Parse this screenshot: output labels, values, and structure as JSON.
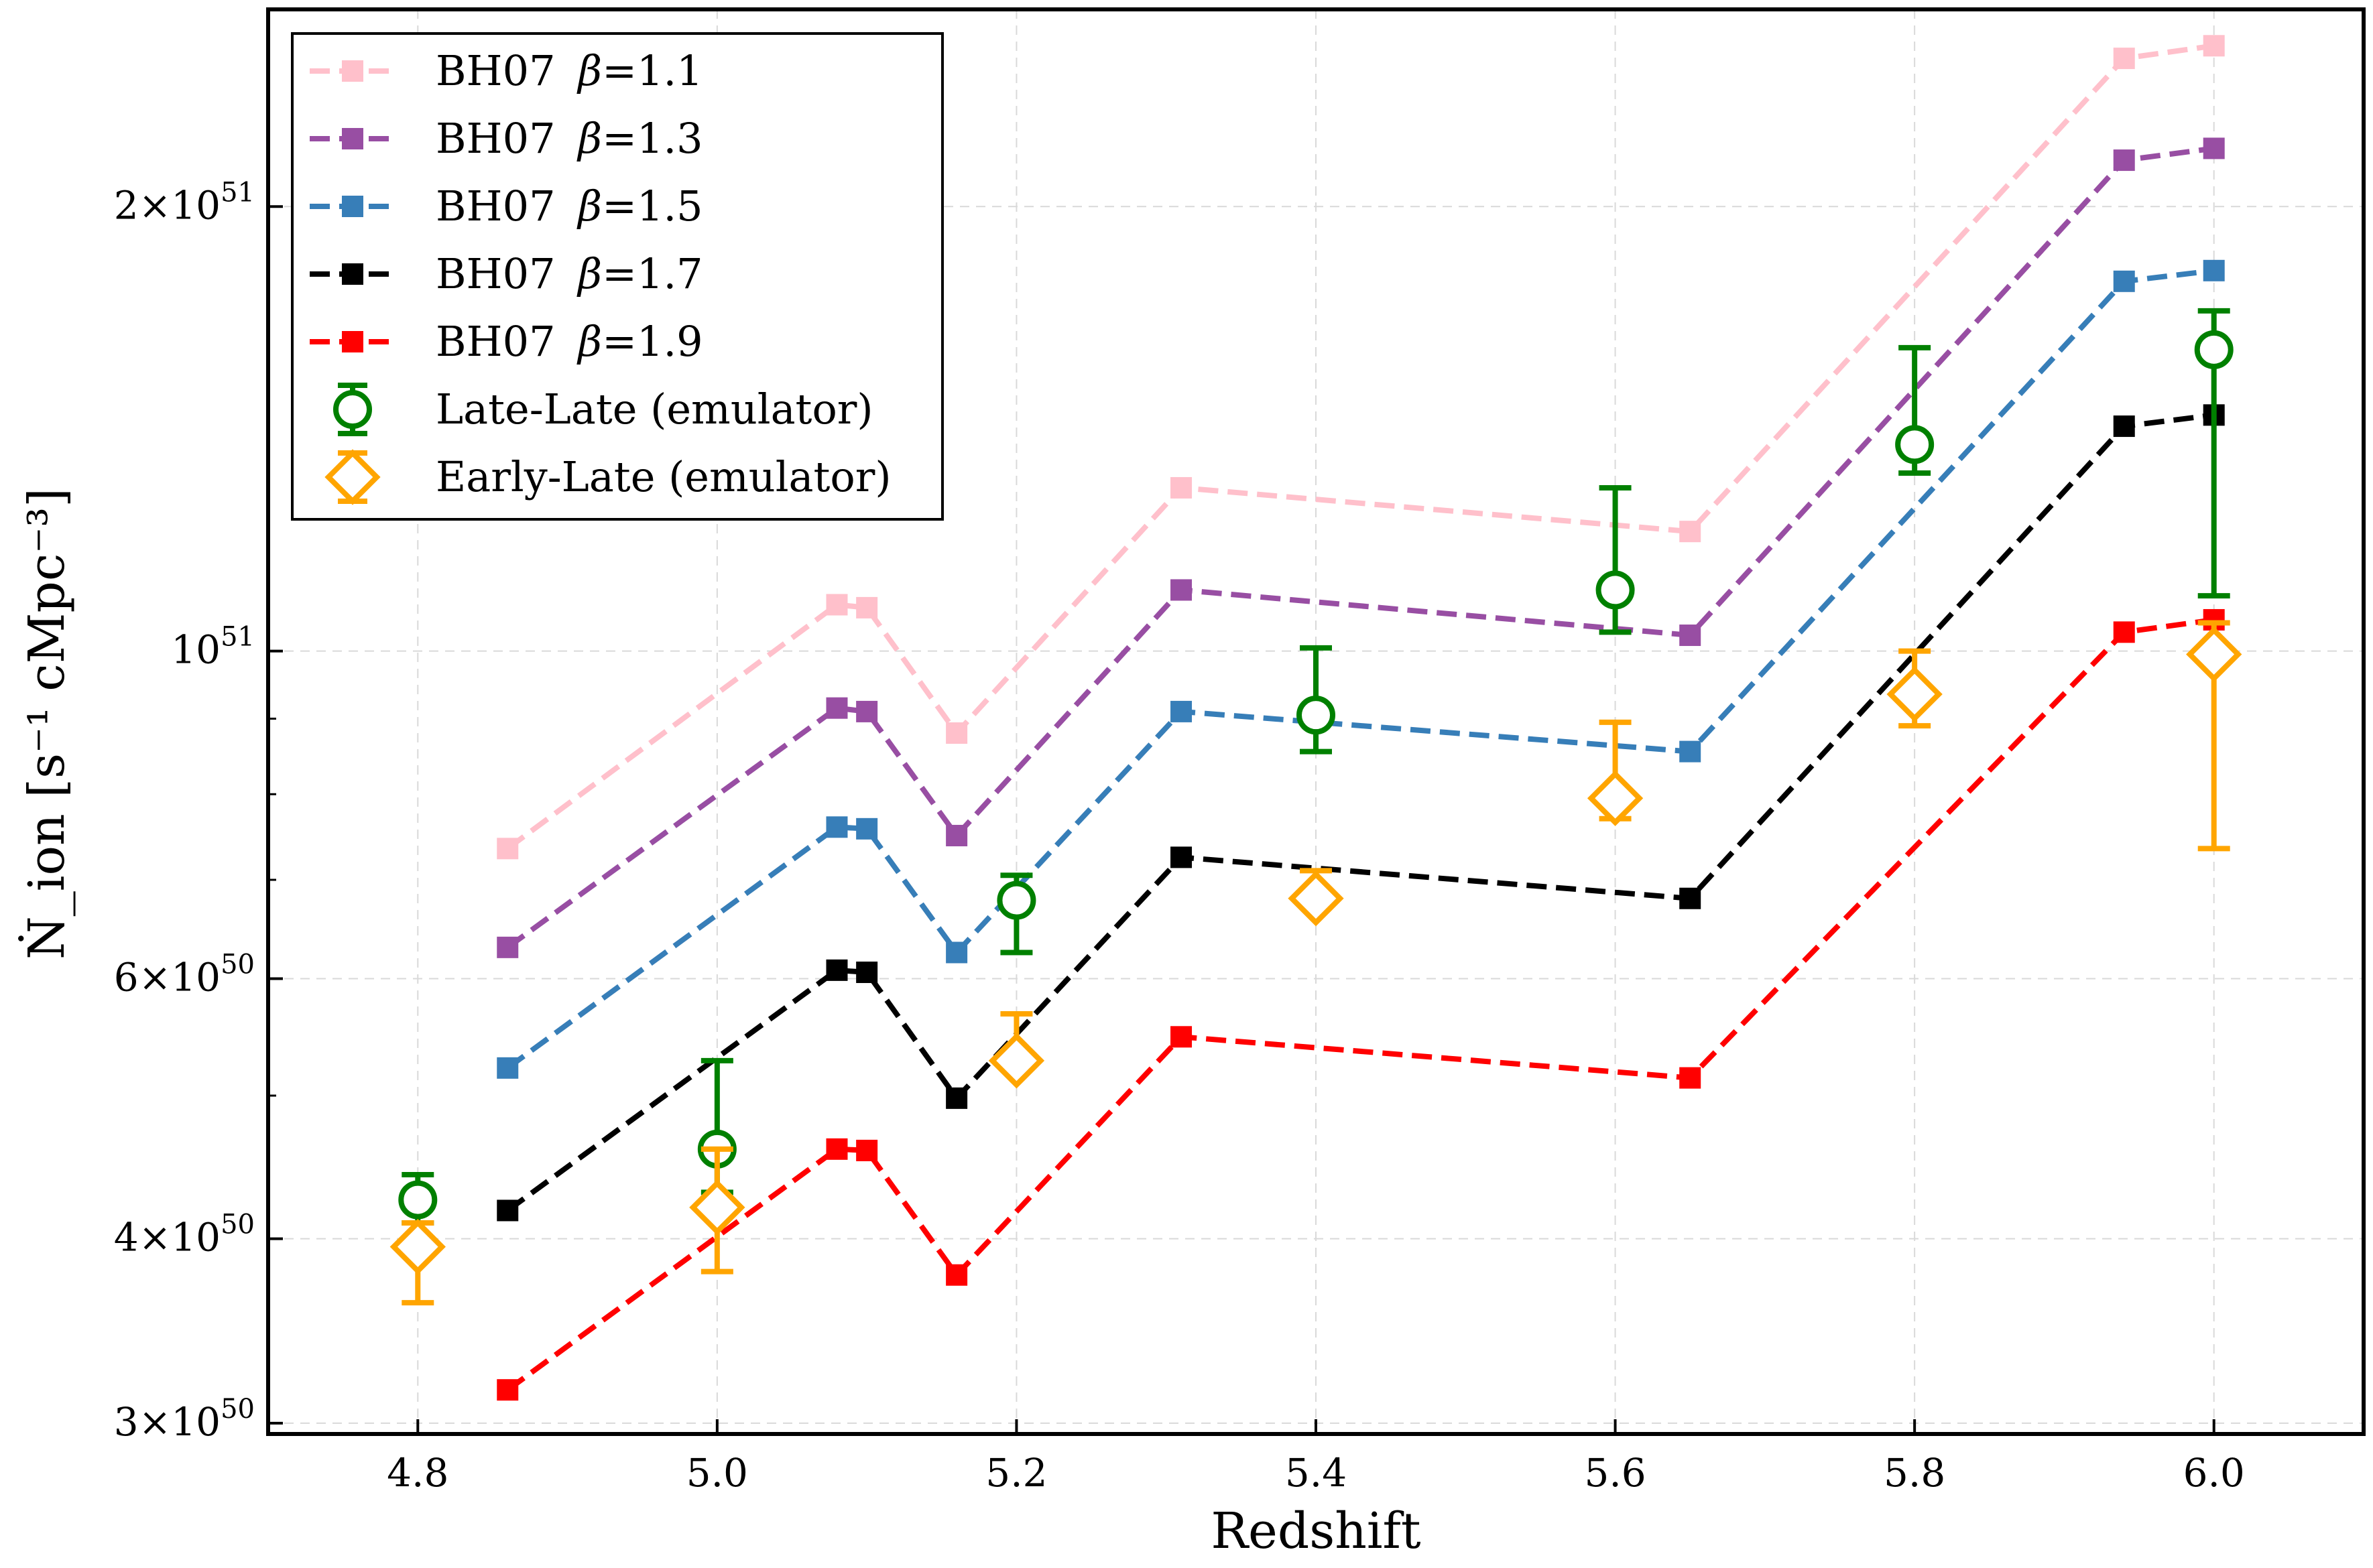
{
  "chart_data": {
    "type": "line",
    "xlabel": "Redshift",
    "ylabel": "Ṅ_ion [s⁻¹ cMpc⁻³]",
    "xlim": [
      4.7,
      6.1
    ],
    "ylim": [
      2.95e+50,
      2.72e+51
    ],
    "yscale": "log",
    "grid": true,
    "legend_position": "upper-left",
    "x_ticks": [
      {
        "value": 4.8,
        "label": "4.8"
      },
      {
        "value": 5.0,
        "label": "5.0"
      },
      {
        "value": 5.2,
        "label": "5.2"
      },
      {
        "value": 5.4,
        "label": "5.4"
      },
      {
        "value": 5.6,
        "label": "5.6"
      },
      {
        "value": 5.8,
        "label": "5.8"
      },
      {
        "value": 6.0,
        "label": "6.0"
      }
    ],
    "y_ticks": [
      {
        "value": 3e+50,
        "mantissa": "3",
        "exponent": "50"
      },
      {
        "value": 4e+50,
        "mantissa": "4",
        "exponent": "50"
      },
      {
        "value": 6e+50,
        "mantissa": "6",
        "exponent": "50"
      },
      {
        "value": 1e+51,
        "mantissa": "",
        "exponent": "51"
      },
      {
        "value": 2e+51,
        "mantissa": "2",
        "exponent": "51"
      }
    ],
    "series": [
      {
        "name": "BH07 β=1.1",
        "label_prefix": "BH07 ",
        "beta": "β",
        "label_suffix": "=1.1",
        "color": "#FFC0CB",
        "x": [
          4.86,
          5.08,
          5.1,
          5.16,
          5.31,
          5.65,
          5.94,
          6.0
        ],
        "y": [
          7.35e+50,
          1.075e+51,
          1.07e+51,
          8.8e+50,
          1.29e+51,
          1.205e+51,
          2.52e+51,
          2.57e+51
        ]
      },
      {
        "name": "BH07 β=1.3",
        "label_prefix": "BH07 ",
        "beta": "β",
        "label_suffix": "=1.3",
        "color": "#984EA3",
        "x": [
          4.86,
          5.08,
          5.1,
          5.16,
          5.31,
          5.65,
          5.94,
          6.0
        ],
        "y": [
          6.3e+50,
          9.15e+50,
          9.1e+50,
          7.5e+50,
          1.1e+51,
          1.025e+51,
          2.15e+51,
          2.19e+51
        ]
      },
      {
        "name": "BH07 β=1.5",
        "label_prefix": "BH07 ",
        "beta": "β",
        "label_suffix": "=1.5",
        "color": "#377EB8",
        "x": [
          4.86,
          5.08,
          5.1,
          5.16,
          5.31,
          5.65,
          5.94,
          6.0
        ],
        "y": [
          5.22e+50,
          7.6e+50,
          7.58e+50,
          6.25e+50,
          9.1e+50,
          8.55e+50,
          1.78e+51,
          1.81e+51
        ]
      },
      {
        "name": "BH07 β=1.7",
        "label_prefix": "BH07 ",
        "beta": "β",
        "label_suffix": "=1.7",
        "color": "#000000",
        "x": [
          4.86,
          5.08,
          5.1,
          5.16,
          5.31,
          5.65,
          5.94,
          6.0
        ],
        "y": [
          4.18e+50,
          6.08e+50,
          6.06e+50,
          4.98e+50,
          7.25e+50,
          6.8e+50,
          1.42e+51,
          1.445e+51
        ]
      },
      {
        "name": "BH07 β=1.9",
        "label_prefix": "BH07 ",
        "beta": "β",
        "label_suffix": "=1.9",
        "color": "#FF0000",
        "x": [
          4.86,
          5.08,
          5.1,
          5.16,
          5.31,
          5.65,
          5.94,
          6.0
        ],
        "y": [
          3.16e+50,
          4.6e+50,
          4.59e+50,
          3.78e+50,
          5.48e+50,
          5.14e+50,
          1.03e+51,
          1.05e+51
        ]
      }
    ],
    "error_series": [
      {
        "name": "Late-Late (emulator)",
        "marker": "circle",
        "color": "#008000",
        "x": [
          4.8,
          5.0,
          5.2,
          5.4,
          5.6,
          5.8,
          6.0
        ],
        "y": [
          4.25e+50,
          4.6e+50,
          6.78e+50,
          9.05e+50,
          1.1e+51,
          1.38e+51,
          1.6e+51
        ],
        "y_low": [
          4.1e+50,
          4.3e+50,
          6.25e+50,
          8.55e+50,
          1.03e+51,
          1.32e+51,
          1.09e+51
        ],
        "y_high": [
          4.42e+50,
          5.28e+50,
          7.05e+50,
          1.005e+51,
          1.29e+51,
          1.605e+51,
          1.7e+51
        ]
      },
      {
        "name": "Early-Late (emulator)",
        "marker": "diamond",
        "color": "#FFA500",
        "x": [
          4.8,
          5.0,
          5.2,
          5.4,
          5.6,
          5.8,
          6.0
        ],
        "y": [
          3.95e+50,
          4.2e+50,
          5.28e+50,
          6.8e+50,
          7.95e+50,
          9.35e+50,
          9.95e+50
        ],
        "y_low": [
          3.62e+50,
          3.8e+50,
          5.28e+50,
          6.8e+50,
          7.7e+50,
          8.9e+50,
          7.35e+50
        ],
        "y_high": [
          4.1e+50,
          4.6e+50,
          5.68e+50,
          7.1e+50,
          8.95e+50,
          1e+51,
          1.045e+51
        ]
      }
    ]
  }
}
